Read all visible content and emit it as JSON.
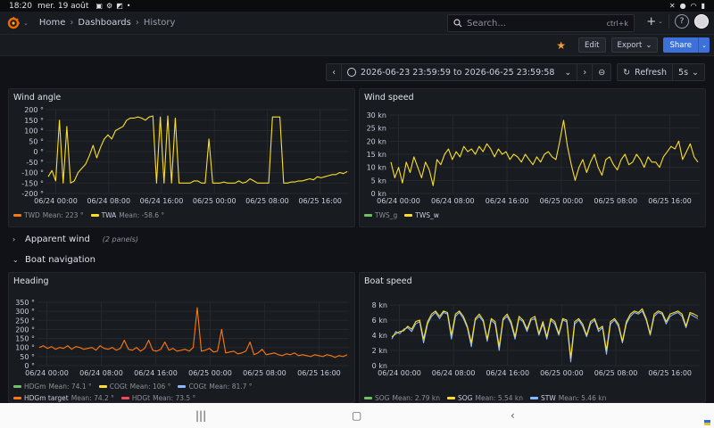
{
  "status": {
    "time": "18:20",
    "date": "mer. 19 août"
  },
  "nav": {
    "breadcrumbs": [
      "Home",
      "Dashboards"
    ],
    "current": "History",
    "search_placeholder": "Search...",
    "search_shortcut": "ctrl+k",
    "plus": "+",
    "help": "?"
  },
  "toolbar": {
    "edit": "Edit",
    "export": "Export",
    "share": "Share"
  },
  "time": {
    "range": "2026-06-23 23:59:59 to 2026-06-25 23:59:58",
    "refresh": "Refresh",
    "interval": "5s"
  },
  "colors": {
    "orange": "#ff780a",
    "yellow": "#fade2a",
    "green": "#73bf69",
    "blue": "#8ab8ff",
    "red": "#f2495c",
    "accent": "#3d71d9"
  },
  "x_ticks": [
    "06/24 00:00",
    "06/24 08:00",
    "06/24 16:00",
    "06/25 00:00",
    "06/25 08:00",
    "06/25 16:00"
  ],
  "rows": {
    "apparent": {
      "title": "Apparent wind",
      "count": "(2 panels)"
    },
    "boat": {
      "title": "Boat navigation"
    }
  },
  "panels": {
    "wind_angle": {
      "title": "Wind angle",
      "legend": [
        {
          "name": "TWD",
          "stat": "Mean: 223 °",
          "color": "#ff780a",
          "dim": true
        },
        {
          "name": "TWA",
          "stat": "Mean: -58.6 °",
          "color": "#fade2a",
          "dim": false
        }
      ]
    },
    "wind_speed": {
      "title": "Wind speed",
      "legend": [
        {
          "name": "TWS_g",
          "stat": "",
          "color": "#73bf69",
          "dim": true
        },
        {
          "name": "TWS_w",
          "stat": "",
          "color": "#fade2a",
          "dim": false
        }
      ]
    },
    "heading": {
      "title": "Heading",
      "legend": [
        {
          "name": "HDGm",
          "stat": "Mean: 74.1 °",
          "color": "#73bf69",
          "dim": true
        },
        {
          "name": "COGt",
          "stat": "Mean: 106 °",
          "color": "#fade2a",
          "dim": true
        },
        {
          "name": "COGt",
          "stat": "Mean: 81.7 °",
          "color": "#8ab8ff",
          "dim": true
        },
        {
          "name": "HDGm target",
          "stat": "Mean: 74.2 °",
          "color": "#ff780a",
          "dim": false
        },
        {
          "name": "HDGt",
          "stat": "Mean: 73.5 °",
          "color": "#f2495c",
          "dim": true
        }
      ]
    },
    "boat_speed": {
      "title": "Boat speed",
      "legend": [
        {
          "name": "SOG",
          "stat": "Mean: 2.79 kn",
          "color": "#73bf69",
          "dim": true
        },
        {
          "name": "SOG",
          "stat": "Mean: 5.54 kn",
          "color": "#fade2a",
          "dim": false
        },
        {
          "name": "STW",
          "stat": "Mean: 5.46 kn",
          "color": "#8ab8ff",
          "dim": false
        }
      ]
    }
  },
  "chart_data": [
    {
      "type": "line",
      "title": "Wind angle",
      "ylim": [
        -200,
        200
      ],
      "y_ticks": [
        "200 °",
        "150 °",
        "100 °",
        "50 °",
        "0 °",
        "-50 °",
        "-100 °",
        "-150 °",
        "-200 °"
      ],
      "x_ticks": [
        "06/24 00:00",
        "06/24 08:00",
        "06/24 16:00",
        "06/25 00:00",
        "06/25 08:00",
        "06/25 16:00"
      ],
      "grid": true,
      "series": [
        {
          "name": "TWA",
          "color": "#fade2a",
          "values": [
            -120,
            -90,
            -140,
            150,
            -150,
            120,
            -150,
            -140,
            -100,
            -80,
            -60,
            -20,
            30,
            -30,
            20,
            60,
            80,
            60,
            100,
            110,
            120,
            150,
            160,
            160,
            165,
            160,
            150,
            165,
            170,
            -150,
            165,
            -150,
            170,
            -150,
            160,
            -150,
            -150,
            -150,
            -150,
            -140,
            -140,
            -150,
            -150,
            60,
            -150,
            -150,
            -150,
            -145,
            -150,
            -150,
            -150,
            -140,
            -150,
            -145,
            -130,
            -140,
            -150,
            -150,
            -150,
            -150,
            165,
            165,
            165,
            -150,
            -150,
            -145,
            -145,
            -140,
            -140,
            -135,
            -130,
            -135,
            -120,
            -125,
            -120,
            -115,
            -110,
            -110,
            -100,
            -105,
            -95
          ]
        }
      ]
    },
    {
      "type": "line",
      "title": "Wind speed",
      "ylim": [
        0,
        30
      ],
      "y_ticks": [
        "30 kn",
        "25 kn",
        "20 kn",
        "15 kn",
        "10 kn",
        "5 kn",
        "0 kn"
      ],
      "x_ticks": [
        "06/24 00:00",
        "06/24 08:00",
        "06/24 16:00",
        "06/25 00:00",
        "06/25 08:00",
        "06/25 16:00"
      ],
      "grid": true,
      "series": [
        {
          "name": "TWS_w",
          "color": "#fade2a",
          "values": [
            12,
            6,
            10,
            4,
            12,
            8,
            14,
            10,
            6,
            12,
            9,
            3,
            13,
            11,
            15,
            17,
            13,
            16,
            14,
            18,
            16,
            17,
            15,
            18,
            16,
            19,
            17,
            14,
            17,
            15,
            16,
            13,
            15,
            14,
            12,
            15,
            13,
            11,
            14,
            12,
            15,
            16,
            14,
            13,
            20,
            28,
            18,
            11,
            5,
            10,
            13,
            8,
            12,
            15,
            10,
            7,
            13,
            14,
            11,
            9,
            13,
            15,
            11,
            12,
            15,
            13,
            10,
            14,
            12,
            12,
            10,
            14,
            16,
            18,
            17,
            20,
            13,
            16,
            19,
            14,
            12
          ]
        }
      ]
    },
    {
      "type": "line",
      "title": "Heading",
      "ylim": [
        0,
        350
      ],
      "y_ticks": [
        "350 °",
        "300 °",
        "250 °",
        "200 °",
        "150 °",
        "100 °",
        "50 °",
        "0 °"
      ],
      "x_ticks": [
        "06/24 00:00",
        "06/24 08:00",
        "06/24 16:00",
        "06/25 00:00",
        "06/25 08:00",
        "06/25 16:00"
      ],
      "grid": true,
      "series": [
        {
          "name": "HDGm target",
          "color": "#ff780a",
          "values": [
            100,
            110,
            95,
            105,
            90,
            100,
            95,
            110,
            90,
            105,
            100,
            90,
            95,
            100,
            85,
            110,
            95,
            90,
            100,
            85,
            95,
            140,
            90,
            85,
            100,
            80,
            95,
            140,
            85,
            80,
            90,
            130,
            85,
            95,
            80,
            85,
            90,
            80,
            100,
            320,
            80,
            85,
            95,
            75,
            80,
            200,
            70,
            75,
            80,
            65,
            70,
            80,
            130,
            60,
            70,
            90,
            60,
            65,
            70,
            60,
            55,
            65,
            60,
            70,
            55,
            60,
            55,
            50,
            60,
            55,
            50,
            60,
            55,
            45,
            55,
            50,
            60
          ]
        }
      ]
    },
    {
      "type": "line",
      "title": "Boat speed",
      "ylim": [
        0,
        8
      ],
      "y_ticks": [
        "8 kn",
        "6 kn",
        "4 kn",
        "2 kn",
        "0 kn"
      ],
      "x_ticks": [
        "06/24 00:00",
        "06/24 08:00",
        "06/24 16:00",
        "06/25 00:00",
        "06/25 08:00",
        "06/25 16:00"
      ],
      "grid": true,
      "series": [
        {
          "name": "STW",
          "color": "#8ab8ff",
          "values": [
            3.5,
            4.5,
            4.2,
            4.8,
            5,
            4.5,
            5.5,
            5.8,
            3,
            5.5,
            6.5,
            7,
            6.2,
            7,
            6.8,
            3.5,
            6.5,
            7,
            6.2,
            5,
            2.5,
            6,
            6.5,
            5.8,
            3.2,
            6,
            5.5,
            2,
            6,
            6.5,
            5.5,
            3.5,
            6.2,
            5.8,
            4.5,
            6,
            6.2,
            4,
            5.5,
            3.5,
            6,
            5.5,
            4,
            6,
            5.8,
            0.5,
            5.5,
            6,
            5.2,
            3.8,
            5.5,
            6,
            4.5,
            5,
            1.5,
            5.5,
            6,
            5.2,
            3,
            5.5,
            6.5,
            7,
            6.8,
            7.2,
            6,
            4,
            6.5,
            7,
            6.8,
            5.5,
            6.5,
            6.8,
            7,
            6.5,
            5,
            6.8,
            6.5,
            6.2
          ]
        },
        {
          "name": "SOG",
          "color": "#fade2a",
          "values": [
            3.8,
            4.2,
            4.5,
            4.6,
            5.2,
            4.8,
            5.8,
            6,
            3.5,
            5.8,
            6.8,
            7.2,
            6.5,
            7.2,
            7,
            4,
            6.8,
            7.2,
            6.5,
            5.2,
            3,
            6.2,
            6.8,
            6,
            3.5,
            6.2,
            5.8,
            2.5,
            6.2,
            6.8,
            5.8,
            3.8,
            6.5,
            6,
            4.8,
            6.2,
            6.5,
            4.2,
            5.8,
            3.8,
            6.2,
            5.8,
            4.2,
            6.2,
            6,
            1,
            5.8,
            6.2,
            5.5,
            4,
            5.8,
            6.2,
            4.8,
            5.2,
            2,
            5.8,
            6.2,
            5.5,
            3.2,
            5.8,
            6.8,
            7.2,
            7,
            7.5,
            6.2,
            4.2,
            6.8,
            7.2,
            7,
            5.8,
            6.8,
            7,
            7.2,
            6.8,
            5.2,
            7,
            6.8,
            6.5
          ]
        }
      ]
    }
  ]
}
